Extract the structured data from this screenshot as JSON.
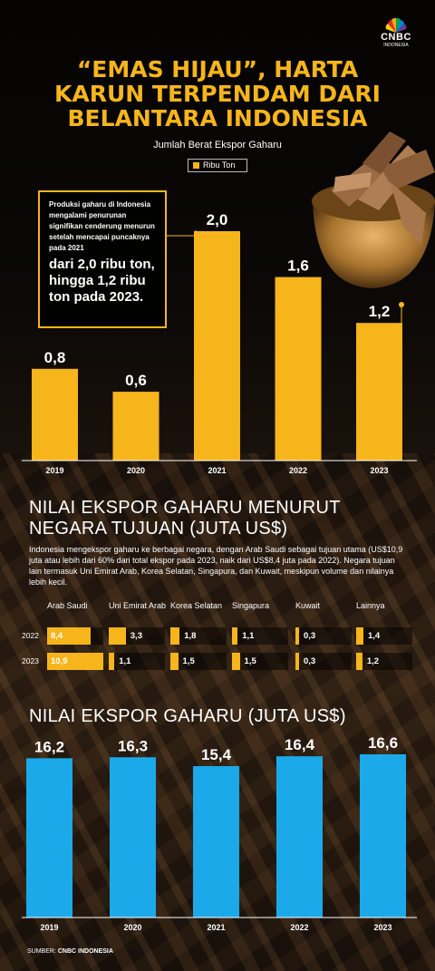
{
  "logo": {
    "name": "CNBC",
    "sub": "INDONESIA"
  },
  "title_lines": [
    "“EMAS HIJAU”, HARTA",
    "KARUN TERPENDAM DARI",
    "BELANTARA INDONESIA"
  ],
  "chart1": {
    "subtitle": "Jumlah Berat Ekspor Gaharu",
    "legend": "Ribu Ton",
    "callout_small": "Produksi gaharu di Indonesia mengalami penurunan signifikan cenderung menurun setelah mencapai puncaknya pada 2021",
    "callout_big": "dari 2,0 ribu ton, hingga 1,2 ribu ton pada 2023."
  },
  "section2": {
    "title_lines": [
      "NILAI EKSPOR GAHARU MENURUT",
      "NEGARA TUJUAN (JUTA US$)"
    ],
    "desc": "Indonesia mengekspor gaharu ke berbagai negara, dengan Arab Saudi sebagai tujuan utama (US$10,9 juta atau lebih dari 60% dari total ekspor pada 2023, naik dari US$8,4 juta pada 2022). Negara tujuan lain termasuk Uni Emirat Arab, Korea Selatan, Singapura, dan Kuwait, meskipun volume dan nilainya lebih kecil.",
    "row_labels": [
      "2022",
      "2023"
    ]
  },
  "section3": {
    "title": "NILAI EKSPOR GAHARU (JUTA US$)"
  },
  "source": {
    "label": "SUMBER:",
    "value": "CNBC INDONESIA"
  },
  "colors": {
    "gold": "#f7b51c",
    "blue": "#1ba9ea"
  },
  "chart_data": [
    {
      "type": "bar",
      "title": "Jumlah Berat Ekspor Gaharu",
      "categories": [
        "2019",
        "2020",
        "2021",
        "2022",
        "2023"
      ],
      "series": [
        {
          "name": "Ribu Ton",
          "values": [
            0.8,
            0.6,
            2.0,
            1.6,
            1.2
          ]
        }
      ],
      "labels": [
        "0,8",
        "0,6",
        "2,0",
        "1,6",
        "1,2"
      ],
      "ylim": [
        0,
        2.0
      ]
    },
    {
      "type": "table",
      "title": "NILAI EKSPOR GAHARU MENURUT NEGARA TUJUAN (JUTA US$)",
      "columns": [
        "Arab Saudi",
        "Uni Emirat Arab",
        "Korea Selatan",
        "Singapura",
        "Kuwait",
        "Lainnya"
      ],
      "rows": [
        {
          "year": "2022",
          "values": [
            8.4,
            3.3,
            1.8,
            1.1,
            0.3,
            1.4
          ],
          "labels": [
            "8,4",
            "3,3",
            "1,8",
            "1,1",
            "0,3",
            "1,4"
          ]
        },
        {
          "year": "2023",
          "values": [
            10.9,
            1.1,
            1.5,
            1.5,
            0.3,
            1.2
          ],
          "labels": [
            "10,9",
            "1,1",
            "1,5",
            "1,5",
            "0,3",
            "1,2"
          ]
        }
      ]
    },
    {
      "type": "bar",
      "title": "NILAI EKSPOR GAHARU (JUTA US$)",
      "categories": [
        "2019",
        "2020",
        "2021",
        "2022",
        "2023"
      ],
      "series": [
        {
          "values": [
            16.2,
            16.3,
            15.4,
            16.4,
            16.6
          ]
        }
      ],
      "labels": [
        "16,2",
        "16,3",
        "15,4",
        "16,4",
        "16,6"
      ],
      "ylim": [
        0,
        16.6
      ]
    }
  ]
}
